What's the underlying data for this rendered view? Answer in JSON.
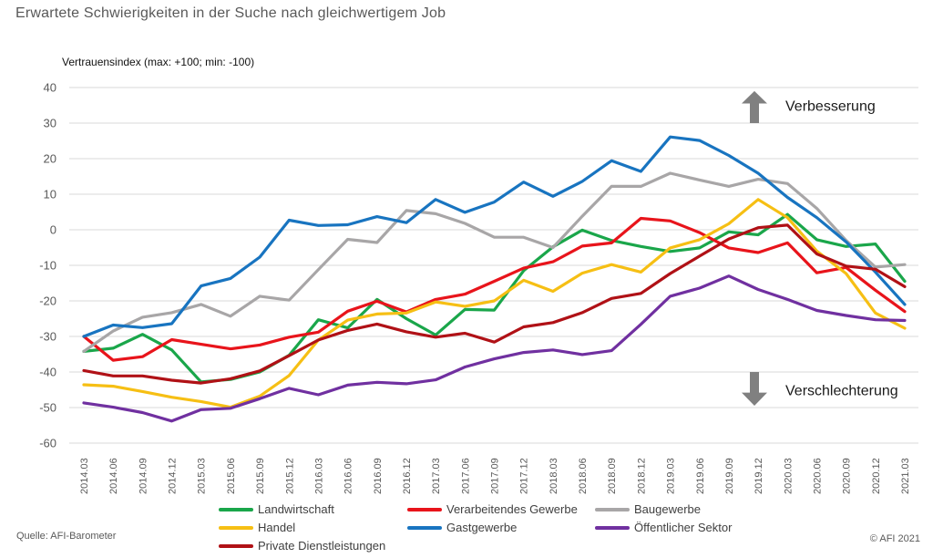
{
  "title": "Erwartete Schwierigkeiten in der Suche nach gleichwertigem Job",
  "source": "Quelle: AFI-Barometer",
  "copyright": "© AFI 2021",
  "chart_data": {
    "type": "line",
    "title": "Erwartete Schwierigkeiten in der Suche nach gleichwertigem Job",
    "ylabel": "Vertrauensindex (max: +100; min: -100)",
    "xlabel": "",
    "ylim": [
      -60,
      40
    ],
    "yticks": [
      40,
      30,
      20,
      10,
      0,
      -10,
      -20,
      -30,
      -40,
      -50,
      -60
    ],
    "ytick_labels": [
      "40",
      "30",
      "20",
      "10",
      "0",
      "-10",
      "-20",
      "-30",
      "-40",
      "-50",
      "-60"
    ],
    "grid": true,
    "legend_position": "bottom",
    "annotations": [
      {
        "text": "Verbesserung",
        "arrow": "up",
        "color": "#808080"
      },
      {
        "text": "Verschlechterung",
        "arrow": "down",
        "color": "#808080"
      }
    ],
    "categories": [
      "2014.03",
      "2014.06",
      "2014.09",
      "2014.12",
      "2015.03",
      "2015.06",
      "2015.09",
      "2015.12",
      "2016.03",
      "2016.06",
      "2016.09",
      "2016.12",
      "2017.03",
      "2017.06",
      "2017.09",
      "2017.12",
      "2018.03",
      "2018.06",
      "2018.09",
      "2018.12",
      "2019.03",
      "2019.06",
      "2019.09",
      "2019.12",
      "2020.03",
      "2020.06",
      "2020.09",
      "2020.12",
      "2021.03"
    ],
    "series": [
      {
        "name": "Landwirtschaft",
        "color": "#1aa64a",
        "values": [
          -34.2,
          -33.3,
          -29.4,
          -33.8,
          -42.8,
          -42.1,
          -40.0,
          -35.3,
          -25.3,
          -27.6,
          -19.6,
          -25.0,
          -29.6,
          -22.4,
          -22.6,
          -11.5,
          -4.8,
          -0.1,
          -3.0,
          -4.7,
          -6.1,
          -5.1,
          -0.6,
          -1.4,
          4.3,
          -2.8,
          -4.7,
          -4.0,
          -14.5
        ]
      },
      {
        "name": "Verarbeitendes Gewerbe",
        "color": "#e8141b",
        "values": [
          -30.0,
          -36.7,
          -35.7,
          -30.9,
          -32.2,
          -33.5,
          -32.4,
          -30.2,
          -28.8,
          -22.9,
          -20.1,
          -23.1,
          -19.6,
          -18.1,
          -14.5,
          -10.8,
          -9.0,
          -4.6,
          -3.7,
          3.2,
          2.5,
          -0.8,
          -5.1,
          -6.4,
          -3.7,
          -12.1,
          -10.6,
          -17.0,
          -23.0
        ]
      },
      {
        "name": "Baugewerbe",
        "color": "#a8a6a7",
        "values": [
          -34.2,
          -28.5,
          -24.6,
          -23.3,
          -21.0,
          -24.3,
          -18.7,
          -19.8,
          -11.2,
          -2.7,
          -3.6,
          5.4,
          4.5,
          1.8,
          -2.1,
          -2.1,
          -5.0,
          3.8,
          12.2,
          12.2,
          15.9,
          14.0,
          12.2,
          14.2,
          13.0,
          6.0,
          -3.0,
          -10.5,
          -9.8
        ]
      },
      {
        "name": "Handel",
        "color": "#f6bf14",
        "values": [
          -43.6,
          -44.0,
          -45.5,
          -47.1,
          -48.3,
          -49.9,
          -46.8,
          -41.0,
          -31.0,
          -25.4,
          -23.7,
          -23.4,
          -20.3,
          -21.5,
          -20.0,
          -14.2,
          -17.3,
          -12.2,
          -9.8,
          -11.9,
          -5.1,
          -2.8,
          1.7,
          8.5,
          3.4,
          -6.0,
          -12.3,
          -23.4,
          -27.7
        ]
      },
      {
        "name": "Gastgewerbe",
        "color": "#1874c0",
        "values": [
          -30.0,
          -26.8,
          -27.5,
          -26.4,
          -15.8,
          -13.7,
          -7.7,
          2.7,
          1.2,
          1.4,
          3.7,
          2.0,
          8.5,
          4.9,
          7.8,
          13.4,
          9.4,
          13.6,
          19.4,
          16.4,
          26.1,
          25.1,
          20.9,
          15.9,
          9.1,
          3.4,
          -3.4,
          -11.9,
          -21.0
        ]
      },
      {
        "name": "Öffentlicher Sektor",
        "color": "#7030a0",
        "values": [
          -48.7,
          -49.9,
          -51.4,
          -53.8,
          -50.6,
          -50.2,
          -47.5,
          -44.6,
          -46.4,
          -43.7,
          -42.9,
          -43.3,
          -42.2,
          -38.6,
          -36.3,
          -34.5,
          -33.8,
          -35.1,
          -34.0,
          -26.6,
          -18.7,
          -16.4,
          -13.0,
          -16.8,
          -19.6,
          -22.7,
          -24.1,
          -25.3,
          -25.5
        ]
      },
      {
        "name": "Private Dienstleistungen",
        "color": "#b01116",
        "values": [
          -39.6,
          -41.1,
          -41.1,
          -42.3,
          -43.1,
          -41.9,
          -39.7,
          -35.4,
          -31.0,
          -28.3,
          -26.5,
          -28.7,
          -30.2,
          -29.1,
          -31.6,
          -27.3,
          -26.1,
          -23.3,
          -19.3,
          -17.9,
          -12.3,
          -7.4,
          -2.6,
          0.6,
          1.3,
          -6.8,
          -10.2,
          -11.1,
          -16.0
        ]
      }
    ]
  }
}
